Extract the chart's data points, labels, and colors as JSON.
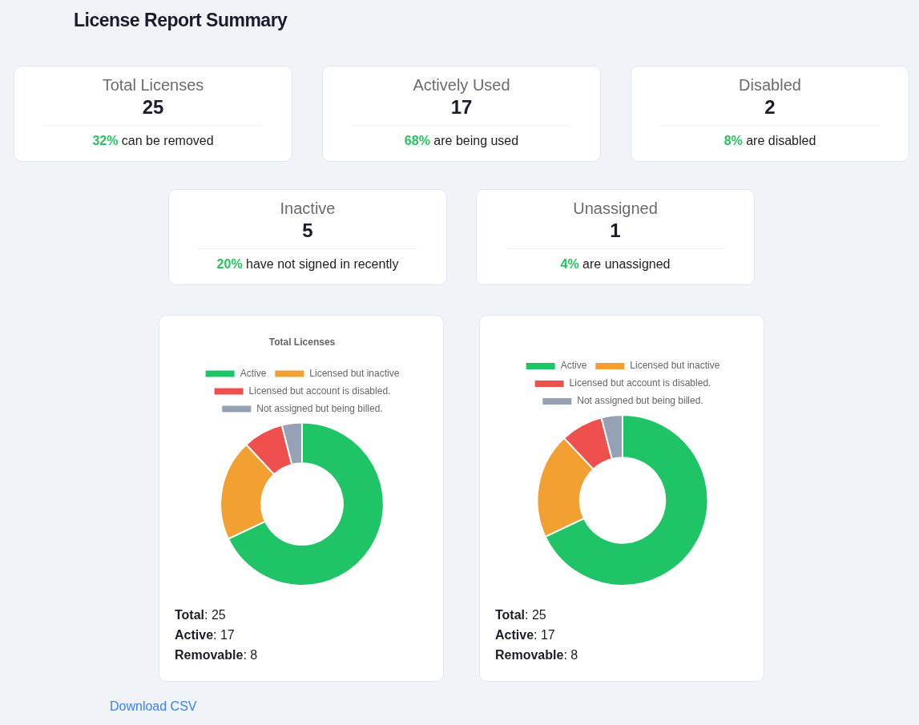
{
  "chart_data": [
    {
      "type": "other",
      "title": "License Report Summary",
      "categories": [
        "Total Licenses",
        "Actively Used",
        "Disabled",
        "Inactive",
        "Unassigned"
      ],
      "values": [
        25,
        17,
        2,
        5,
        1
      ],
      "data_labels": true,
      "annotations": [
        "32% can be removed",
        "68% are being used",
        "8% are disabled",
        "20% have not signed in recently",
        "4% are unassigned",
        "Download CSV"
      ]
    },
    {
      "type": "donut",
      "title": "Total Licenses",
      "categories": [
        "Active",
        "Licensed but inactive",
        "Licensed but account is disabled.",
        "Not assigned but being billed."
      ],
      "values": [
        68,
        20,
        8,
        4
      ],
      "colors": [
        "#1fc466",
        "#f1a031",
        "#ef4f4d",
        "#97a1b6"
      ],
      "legend": "top",
      "annotations": [
        "Total: 25",
        "Active: 17",
        "Removable: 8"
      ]
    },
    {
      "type": "donut",
      "categories": [
        "Active",
        "Licensed but inactive",
        "Licensed but account is disabled.",
        "Not assigned but being billed."
      ],
      "values": [
        68,
        20,
        8,
        4
      ],
      "colors": [
        "#1fc466",
        "#f1a031",
        "#ef4f4d",
        "#97a1b6"
      ],
      "legend": "top",
      "annotations": [
        "Total: 25",
        "Active: 17",
        "Removable: 8"
      ]
    }
  ]
}
